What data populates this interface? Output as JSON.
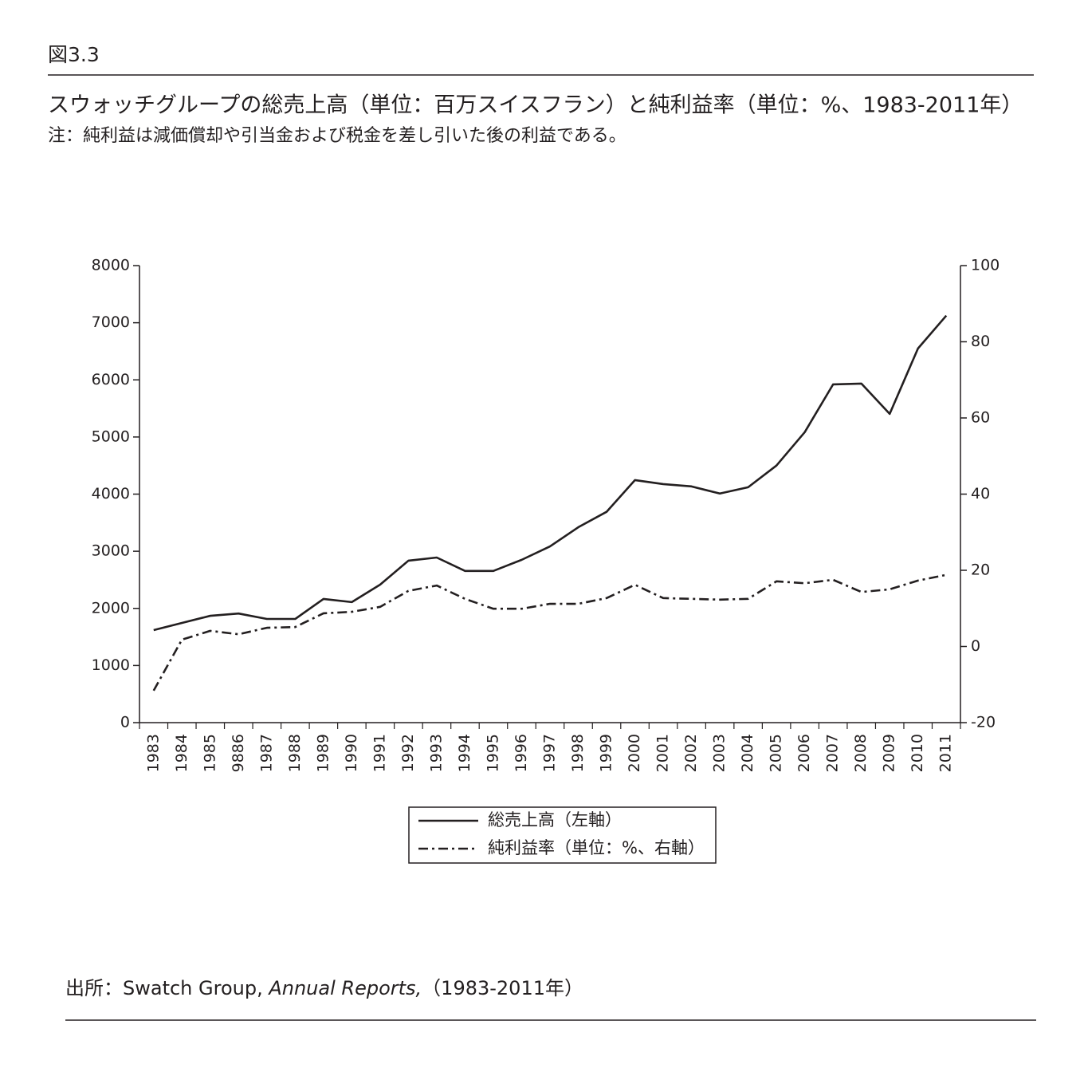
{
  "header": {
    "figure": "図3.3",
    "title": "スウォッチグループの総売上高（単位：百万スイスフラン）と純利益率（単位：%、1983-2011年）",
    "note": "注：純利益は減価償却や引当金および税金を差し引いた後の利益である。"
  },
  "chart_data": {
    "type": "line",
    "categories": [
      "1983",
      "1984",
      "1985",
      "9886",
      "1987",
      "1988",
      "1989",
      "1990",
      "1991",
      "1992",
      "1993",
      "1994",
      "1995",
      "1996",
      "1997",
      "1998",
      "1999",
      "2000",
      "2001",
      "2002",
      "2003",
      "2004",
      "2005",
      "2006",
      "2007",
      "2008",
      "2009",
      "2010",
      "2011"
    ],
    "series": [
      {
        "name": "総売上高（左軸）",
        "color": "#231f20",
        "line_style": "solid",
        "axis": "y",
        "values": [
          1620,
          1745,
          1870,
          1910,
          1815,
          1815,
          2165,
          2110,
          2415,
          2835,
          2890,
          2655,
          2655,
          2850,
          3085,
          3420,
          3690,
          4245,
          4175,
          4135,
          4010,
          4120,
          4500,
          5085,
          5920,
          5935,
          5405,
          6550,
          7125
        ]
      },
      {
        "name": "純利益率（単位：%、右軸）",
        "color": "#231f20",
        "line_style": "dashdot",
        "axis": "y2",
        "values": [
          -11.6,
          1.8,
          4.1,
          3.2,
          4.9,
          5.1,
          8.7,
          9.1,
          10.4,
          14.6,
          16.0,
          12.5,
          9.9,
          9.9,
          11.2,
          11.2,
          12.7,
          16.2,
          12.7,
          12.5,
          12.3,
          12.5,
          17.1,
          16.6,
          17.5,
          14.3,
          15.0,
          17.3,
          18.8
        ]
      }
    ],
    "ylim": [
      0,
      8000
    ],
    "yticks": [
      0,
      1000,
      2000,
      3000,
      4000,
      5000,
      6000,
      7000,
      8000
    ],
    "y2lim": [
      -20,
      100
    ],
    "y2ticks": [
      -20,
      0,
      20,
      40,
      60,
      80,
      100
    ],
    "grid": false
  },
  "source": {
    "prefix": "出所：Swatch Group, ",
    "italic": "Annual Reports,",
    "suffix": "（1983-2011年）"
  }
}
